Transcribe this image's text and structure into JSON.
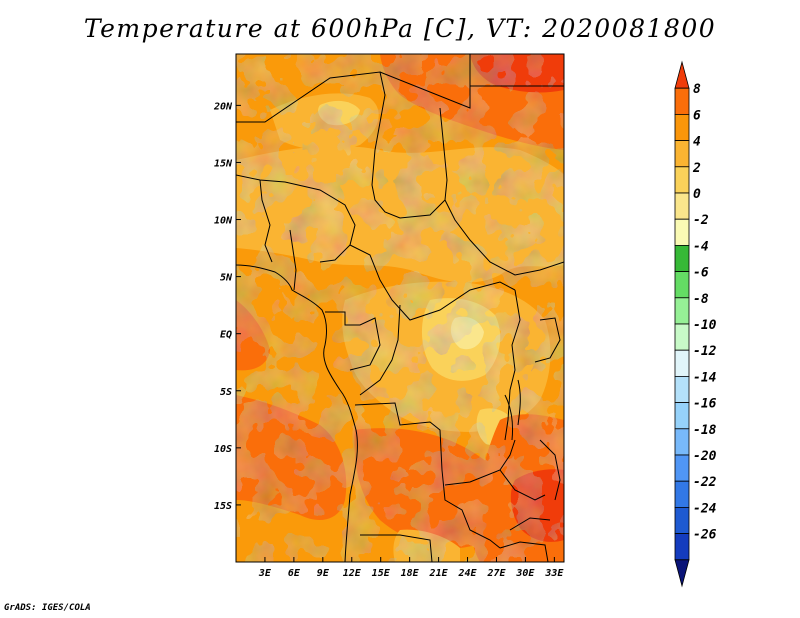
{
  "title": "Temperature at 600hPa [C], VT: 2020081800",
  "credit": "GrADS: IGES/COLA",
  "map": {
    "projection": "lat-lon",
    "lon_range": [
      0,
      34
    ],
    "lat_range": [
      -20,
      24.5
    ],
    "x_ticks": [
      {
        "value": 3,
        "label": "3E"
      },
      {
        "value": 6,
        "label": "6E"
      },
      {
        "value": 9,
        "label": "9E"
      },
      {
        "value": 12,
        "label": "12E"
      },
      {
        "value": 15,
        "label": "15E"
      },
      {
        "value": 18,
        "label": "18E"
      },
      {
        "value": 21,
        "label": "21E"
      },
      {
        "value": 24,
        "label": "24E"
      },
      {
        "value": 27,
        "label": "27E"
      },
      {
        "value": 30,
        "label": "30E"
      },
      {
        "value": 33,
        "label": "33E"
      }
    ],
    "y_ticks": [
      {
        "value": 20,
        "label": "20N"
      },
      {
        "value": 15,
        "label": "15N"
      },
      {
        "value": 10,
        "label": "10N"
      },
      {
        "value": 5,
        "label": "5N"
      },
      {
        "value": 0,
        "label": "EQ"
      },
      {
        "value": -5,
        "label": "5S"
      },
      {
        "value": -10,
        "label": "10S"
      },
      {
        "value": -15,
        "label": "15S"
      }
    ]
  },
  "colorbar": {
    "labels": [
      "8",
      "6",
      "4",
      "2",
      "0",
      "-2",
      "-4",
      "-6",
      "-8",
      "-10",
      "-12",
      "-14",
      "-16",
      "-18",
      "-20",
      "-22",
      "-24",
      "-26"
    ],
    "colors": [
      "#f03c0a",
      "#fa6e0a",
      "#fa960a",
      "#fab432",
      "#fad25a",
      "#fae68c",
      "#fafab4",
      "#37b937",
      "#64dc64",
      "#96f096",
      "#c8fac8",
      "#e1f5fa",
      "#b4e1fa",
      "#96d2fa",
      "#78b9fa",
      "#5096f5",
      "#3278e6",
      "#1e5ad2",
      "#143cbe",
      "#0a1478"
    ]
  },
  "chart_data": {
    "type": "heatmap",
    "title": "Temperature at 600hPa [C], VT: 2020081800",
    "variable": "Temperature at 600hPa",
    "units": "C",
    "valid_time": "2020081800",
    "x_range_lon": [
      0,
      34
    ],
    "y_range_lat": [
      -20,
      24.5
    ],
    "levels": [
      -26,
      -24,
      -22,
      -20,
      -18,
      -16,
      -14,
      -12,
      -10,
      -8,
      -6,
      -4,
      -2,
      0,
      2,
      4,
      6,
      8
    ],
    "regions": [
      {
        "lat": [
          20,
          24.5
        ],
        "lon": [
          25,
          34
        ],
        "value": 7
      },
      {
        "lat": [
          -17,
          -12
        ],
        "lon": [
          28,
          34
        ],
        "value": 6
      },
      {
        "lat": [
          -12,
          -8
        ],
        "lon": [
          0,
          9
        ],
        "value": 5
      },
      {
        "lat": [
          -20,
          -10
        ],
        "lon": [
          12,
          20
        ],
        "value": 4
      },
      {
        "lat": [
          -5,
          5
        ],
        "lon": [
          18,
          28
        ],
        "value": 2
      },
      {
        "lat": [
          15,
          22
        ],
        "lon": [
          5,
          15
        ],
        "value": 2
      }
    ]
  }
}
